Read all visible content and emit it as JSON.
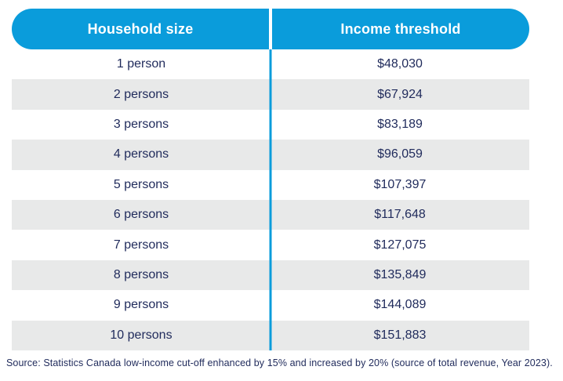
{
  "table": {
    "headers": [
      "Household size",
      "Income threshold"
    ],
    "rows": [
      [
        "1 person",
        "$48,030"
      ],
      [
        "2 persons",
        "$67,924"
      ],
      [
        "3 persons",
        "$83,189"
      ],
      [
        "4 persons",
        "$96,059"
      ],
      [
        "5 persons",
        "$107,397"
      ],
      [
        "6 persons",
        "$117,648"
      ],
      [
        "7 persons",
        "$127,075"
      ],
      [
        "8 persons",
        "$135,849"
      ],
      [
        "9 persons",
        "$144,089"
      ],
      [
        "10 persons",
        "$151,883"
      ]
    ]
  },
  "source_note": "Source: Statistics Canada low-income cut-off enhanced by 15% and increased by 20% (source of total revenue, Year 2023).",
  "colors": {
    "accent_cyan": "#0A9CDB",
    "alt_row_gray": "#E8E9E9",
    "text_navy": "#1F2A5B",
    "header_text": "#FFFFFF"
  },
  "chart_data": {
    "type": "table",
    "title": "",
    "columns": [
      "Household size",
      "Income threshold"
    ],
    "rows": [
      [
        "1 person",
        48030
      ],
      [
        "2 persons",
        67924
      ],
      [
        "3 persons",
        83189
      ],
      [
        "4 persons",
        96059
      ],
      [
        "5 persons",
        107397
      ],
      [
        "6 persons",
        117648
      ],
      [
        "7 persons",
        127075
      ],
      [
        "8 persons",
        135849
      ],
      [
        "9 persons",
        144089
      ],
      [
        "10 persons",
        151883
      ]
    ],
    "notes": "Income thresholds formatted as CAD currency in the rendered table; alternating row shading starting white on row 1."
  }
}
